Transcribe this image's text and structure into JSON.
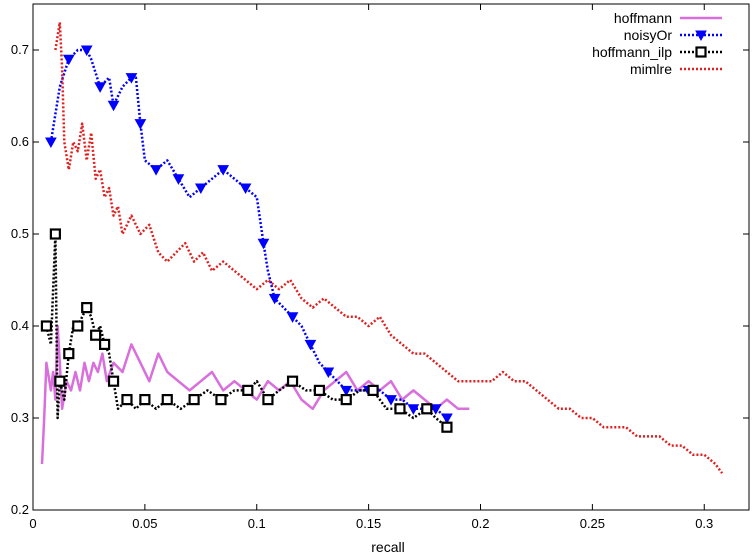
{
  "chart_data": {
    "type": "line",
    "title": "",
    "xlabel": "recall",
    "ylabel": "",
    "xlim": [
      0,
      0.32
    ],
    "ylim": [
      0.2,
      0.75
    ],
    "x_ticks": [
      0,
      0.05,
      0.1,
      0.15,
      0.2,
      0.25,
      0.3
    ],
    "x_tick_labels": [
      "0",
      "0.05",
      "0.1",
      "0.15",
      "0.2",
      "0.25",
      "0.3"
    ],
    "y_ticks": [
      0.2,
      0.3,
      0.4,
      0.5,
      0.6,
      0.7
    ],
    "y_tick_labels": [
      "0.2",
      "0.3",
      "0.4",
      "0.5",
      "0.6",
      "0.7"
    ],
    "grid": false,
    "legend_position": "top-right",
    "series": [
      {
        "name": "hoffmann",
        "color": "#d86fdc",
        "dash": "solid",
        "marker": "none",
        "x": [
          0.004,
          0.005,
          0.006,
          0.008,
          0.009,
          0.01,
          0.011,
          0.012,
          0.013,
          0.015,
          0.017,
          0.019,
          0.021,
          0.023,
          0.025,
          0.027,
          0.029,
          0.031,
          0.033,
          0.036,
          0.04,
          0.044,
          0.048,
          0.052,
          0.056,
          0.06,
          0.065,
          0.07,
          0.075,
          0.08,
          0.085,
          0.09,
          0.095,
          0.1,
          0.105,
          0.11,
          0.115,
          0.12,
          0.125,
          0.13,
          0.135,
          0.14,
          0.145,
          0.15,
          0.155,
          0.16,
          0.165,
          0.17,
          0.175,
          0.18,
          0.185,
          0.19,
          0.195
        ],
        "y": [
          0.25,
          0.3,
          0.36,
          0.33,
          0.35,
          0.32,
          0.4,
          0.36,
          0.31,
          0.34,
          0.33,
          0.35,
          0.33,
          0.36,
          0.34,
          0.36,
          0.35,
          0.37,
          0.34,
          0.36,
          0.35,
          0.38,
          0.36,
          0.34,
          0.37,
          0.35,
          0.34,
          0.33,
          0.34,
          0.35,
          0.33,
          0.34,
          0.33,
          0.32,
          0.34,
          0.33,
          0.34,
          0.32,
          0.31,
          0.33,
          0.34,
          0.35,
          0.33,
          0.34,
          0.33,
          0.34,
          0.32,
          0.33,
          0.32,
          0.31,
          0.32,
          0.31,
          0.31
        ]
      },
      {
        "name": "noisyOr",
        "color": "#0000ff",
        "dash": "dotted",
        "marker": "triangle-down",
        "x": [
          0.008,
          0.012,
          0.016,
          0.02,
          0.024,
          0.026,
          0.03,
          0.034,
          0.036,
          0.04,
          0.044,
          0.046,
          0.048,
          0.05,
          0.055,
          0.06,
          0.065,
          0.07,
          0.075,
          0.08,
          0.085,
          0.09,
          0.095,
          0.1,
          0.103,
          0.105,
          0.108,
          0.112,
          0.116,
          0.12,
          0.124,
          0.128,
          0.132,
          0.136,
          0.14,
          0.145,
          0.15,
          0.155,
          0.16,
          0.165,
          0.17,
          0.175,
          0.18,
          0.185
        ],
        "y": [
          0.6,
          0.66,
          0.69,
          0.7,
          0.7,
          0.69,
          0.66,
          0.67,
          0.64,
          0.66,
          0.67,
          0.67,
          0.62,
          0.58,
          0.57,
          0.58,
          0.56,
          0.54,
          0.55,
          0.56,
          0.57,
          0.56,
          0.55,
          0.54,
          0.49,
          0.46,
          0.43,
          0.42,
          0.41,
          0.4,
          0.38,
          0.36,
          0.35,
          0.34,
          0.33,
          0.33,
          0.33,
          0.33,
          0.32,
          0.32,
          0.31,
          0.31,
          0.31,
          0.3
        ]
      },
      {
        "name": "hoffmann_ilp",
        "color": "#000000",
        "dash": "dotted",
        "marker": "square",
        "x": [
          0.006,
          0.008,
          0.01,
          0.011,
          0.012,
          0.014,
          0.016,
          0.018,
          0.02,
          0.022,
          0.024,
          0.026,
          0.028,
          0.03,
          0.032,
          0.034,
          0.036,
          0.038,
          0.042,
          0.046,
          0.05,
          0.055,
          0.06,
          0.066,
          0.072,
          0.078,
          0.084,
          0.09,
          0.096,
          0.1,
          0.105,
          0.11,
          0.116,
          0.122,
          0.128,
          0.134,
          0.14,
          0.146,
          0.152,
          0.158,
          0.164,
          0.17,
          0.176,
          0.18,
          0.185
        ],
        "y": [
          0.4,
          0.38,
          0.5,
          0.3,
          0.34,
          0.32,
          0.37,
          0.4,
          0.4,
          0.41,
          0.42,
          0.41,
          0.39,
          0.4,
          0.38,
          0.37,
          0.34,
          0.31,
          0.32,
          0.31,
          0.32,
          0.31,
          0.32,
          0.31,
          0.32,
          0.33,
          0.32,
          0.33,
          0.33,
          0.34,
          0.32,
          0.33,
          0.34,
          0.33,
          0.33,
          0.32,
          0.32,
          0.33,
          0.33,
          0.31,
          0.31,
          0.3,
          0.31,
          0.3,
          0.29
        ]
      },
      {
        "name": "mimlre",
        "color": "#e02020",
        "dash": "dotted",
        "marker": "none",
        "x": [
          0.01,
          0.012,
          0.013,
          0.014,
          0.016,
          0.018,
          0.02,
          0.022,
          0.024,
          0.026,
          0.028,
          0.03,
          0.032,
          0.034,
          0.036,
          0.038,
          0.04,
          0.044,
          0.048,
          0.052,
          0.056,
          0.06,
          0.064,
          0.068,
          0.072,
          0.076,
          0.08,
          0.085,
          0.09,
          0.095,
          0.1,
          0.105,
          0.11,
          0.115,
          0.12,
          0.125,
          0.13,
          0.135,
          0.14,
          0.145,
          0.15,
          0.155,
          0.16,
          0.165,
          0.17,
          0.175,
          0.18,
          0.185,
          0.19,
          0.195,
          0.2,
          0.205,
          0.21,
          0.215,
          0.22,
          0.225,
          0.23,
          0.235,
          0.24,
          0.245,
          0.25,
          0.255,
          0.26,
          0.265,
          0.27,
          0.275,
          0.28,
          0.285,
          0.29,
          0.295,
          0.3,
          0.305,
          0.308
        ],
        "y": [
          0.7,
          0.73,
          0.68,
          0.6,
          0.57,
          0.6,
          0.59,
          0.62,
          0.58,
          0.61,
          0.56,
          0.57,
          0.54,
          0.55,
          0.52,
          0.53,
          0.5,
          0.52,
          0.5,
          0.51,
          0.48,
          0.47,
          0.48,
          0.49,
          0.47,
          0.48,
          0.46,
          0.47,
          0.46,
          0.45,
          0.44,
          0.45,
          0.44,
          0.45,
          0.43,
          0.42,
          0.43,
          0.42,
          0.41,
          0.41,
          0.4,
          0.41,
          0.39,
          0.38,
          0.37,
          0.37,
          0.36,
          0.35,
          0.34,
          0.34,
          0.34,
          0.34,
          0.35,
          0.34,
          0.34,
          0.33,
          0.32,
          0.31,
          0.31,
          0.3,
          0.3,
          0.29,
          0.29,
          0.29,
          0.28,
          0.28,
          0.28,
          0.27,
          0.27,
          0.26,
          0.26,
          0.25,
          0.24
        ]
      }
    ]
  }
}
